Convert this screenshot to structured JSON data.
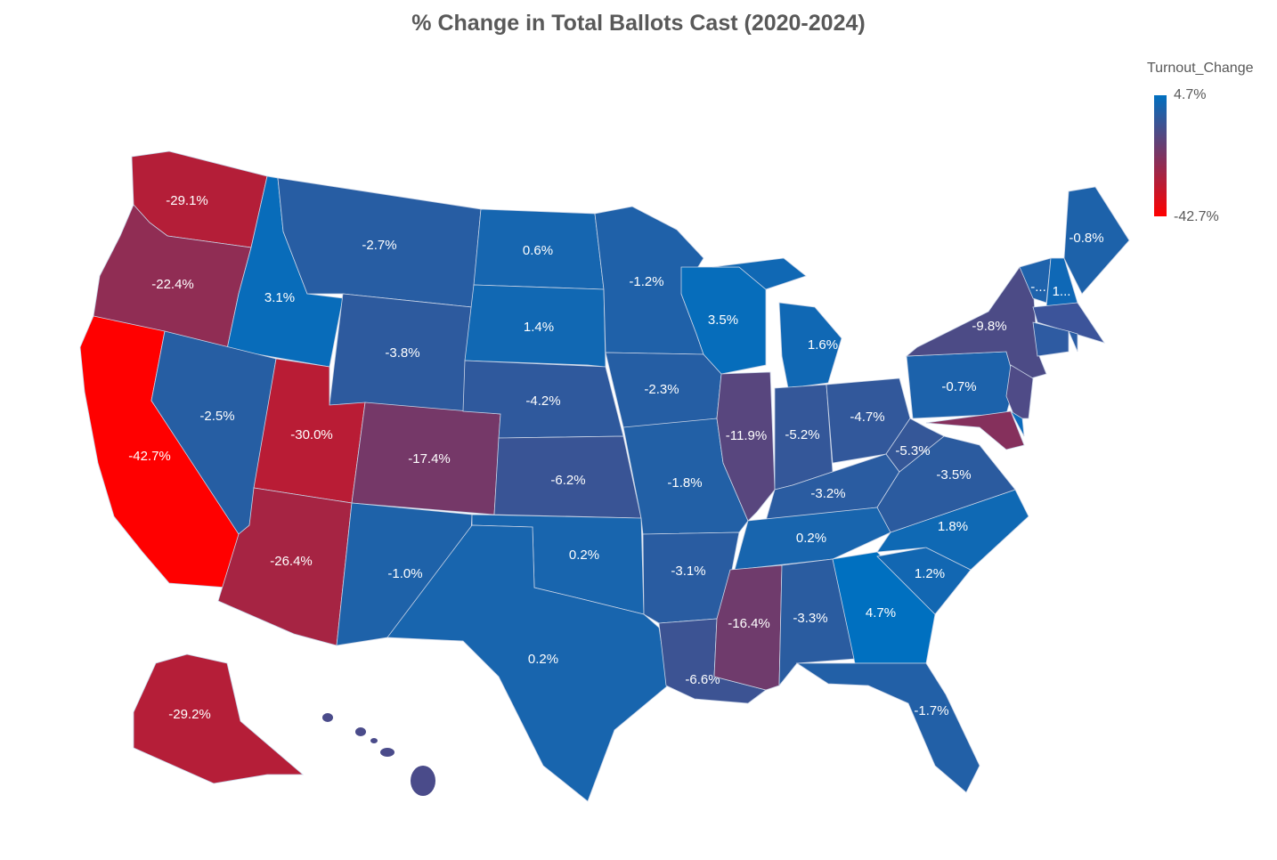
{
  "title": "% Change in Total Ballots Cast (2020-2024)",
  "legend": {
    "title": "Turnout_Change",
    "max_label": "4.7%",
    "min_label": "-42.7%",
    "max_value": 4.7,
    "min_value": -42.7,
    "color_low": "#FF0000",
    "color_mid": "#7D3462",
    "color_high": "#0070C0"
  },
  "states": {
    "WA": {
      "value": -29.1,
      "label": "-29.1%"
    },
    "OR": {
      "value": -22.4,
      "label": "-22.4%"
    },
    "CA": {
      "value": -42.7,
      "label": "-42.7%"
    },
    "ID": {
      "value": 3.1,
      "label": "3.1%"
    },
    "NV": {
      "value": -2.5,
      "label": "-2.5%"
    },
    "MT": {
      "value": -2.7,
      "label": "-2.7%"
    },
    "WY": {
      "value": -3.8,
      "label": "-3.8%"
    },
    "UT": {
      "value": -30.0,
      "label": "-30.0%"
    },
    "AZ": {
      "value": -26.4,
      "label": "-26.4%"
    },
    "CO": {
      "value": -17.4,
      "label": "-17.4%"
    },
    "NM": {
      "value": -1.0,
      "label": "-1.0%"
    },
    "ND": {
      "value": 0.6,
      "label": "0.6%"
    },
    "SD": {
      "value": 1.4,
      "label": "1.4%"
    },
    "NE": {
      "value": -4.2,
      "label": "-4.2%"
    },
    "KS": {
      "value": -6.2,
      "label": "-6.2%"
    },
    "OK": {
      "value": 0.2,
      "label": "0.2%"
    },
    "TX": {
      "value": 0.2,
      "label": "0.2%"
    },
    "MN": {
      "value": -1.2,
      "label": "-1.2%"
    },
    "IA": {
      "value": -2.3,
      "label": "-2.3%"
    },
    "MO": {
      "value": -1.8,
      "label": "-1.8%"
    },
    "AR": {
      "value": -3.1,
      "label": "-3.1%"
    },
    "LA": {
      "value": -6.6,
      "label": "-6.6%"
    },
    "WI": {
      "value": 3.5,
      "label": "3.5%"
    },
    "IL": {
      "value": -11.9,
      "label": "-11.9%"
    },
    "MI": {
      "value": 1.6,
      "label": "1.6%"
    },
    "IN": {
      "value": -5.2,
      "label": "-5.2%"
    },
    "OH": {
      "value": -4.7,
      "label": "-4.7%"
    },
    "KY": {
      "value": -3.2,
      "label": "-3.2%"
    },
    "TN": {
      "value": 0.2,
      "label": "0.2%"
    },
    "MS": {
      "value": -16.4,
      "label": "-16.4%"
    },
    "AL": {
      "value": -3.3,
      "label": "-3.3%"
    },
    "GA": {
      "value": 4.7,
      "label": "4.7%"
    },
    "FL": {
      "value": -1.7,
      "label": "-1.7%"
    },
    "SC": {
      "value": 1.2,
      "label": "1.2%"
    },
    "NC": {
      "value": 1.8,
      "label": "1.8%"
    },
    "VA": {
      "value": -3.5,
      "label": "-3.5%"
    },
    "WV": {
      "value": -5.3,
      "label": "-5.3%"
    },
    "PA": {
      "value": -0.7,
      "label": "-0.7%"
    },
    "NY": {
      "value": -9.8,
      "label": "-9.8%"
    },
    "ME": {
      "value": -0.8,
      "label": "-0.8%"
    },
    "VT": {
      "label": "-...",
      "color": "#1F63AC"
    },
    "NH": {
      "label": "1...",
      "color": "#0F68B6"
    },
    "NJ": {
      "color": "#4F4B87"
    },
    "MD": {
      "color": "#85305C"
    },
    "DE": {
      "color": "#0A6CBD"
    },
    "MA": {
      "color": "#3C549A"
    },
    "CT": {
      "color": "#2E5BA2"
    },
    "RI": {
      "color": "#2A5DA5"
    },
    "AK": {
      "value": -29.2,
      "label": "-29.2%"
    },
    "HI": {
      "color": "#4A4B8A"
    }
  }
}
